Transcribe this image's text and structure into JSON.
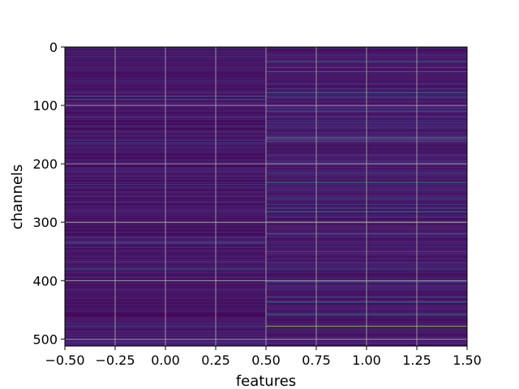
{
  "chart_data": {
    "type": "heatmap",
    "xlabel": "features",
    "ylabel": "channels",
    "xlim": [
      -0.5,
      1.5
    ],
    "ylim": [
      512,
      0
    ],
    "n_rows": 512,
    "x_cells": [
      0,
      1
    ],
    "x_ticks": [
      -0.5,
      -0.25,
      0.0,
      0.25,
      0.5,
      0.75,
      1.0,
      1.25,
      1.5
    ],
    "x_tick_labels": [
      "−0.50",
      "−0.25",
      "0.00",
      "0.25",
      "0.50",
      "0.75",
      "1.00",
      "1.25",
      "1.50"
    ],
    "y_ticks": [
      0,
      100,
      200,
      300,
      400,
      500
    ],
    "y_tick_labels": [
      "0",
      "100",
      "200",
      "300",
      "400",
      "500"
    ],
    "grid": true,
    "colormap": "viridis",
    "colors": {
      "viridis": [
        "#440154",
        "#472c7a",
        "#3b518b",
        "#2c718e",
        "#21908d",
        "#27ad81",
        "#5cc863",
        "#aadc32",
        "#fde725"
      ],
      "grid": "#b0b0b0"
    },
    "columns": [
      {
        "feature": 0,
        "base": 0.06,
        "bright_rows": [
          {
            "row": 84,
            "value": 0.38
          },
          {
            "row": 90,
            "value": 0.3
          },
          {
            "row": 120,
            "value": 0.22
          },
          {
            "row": 160,
            "value": 0.2
          },
          {
            "row": 235,
            "value": 0.2
          },
          {
            "row": 326,
            "value": 0.3
          },
          {
            "row": 334,
            "value": 0.33
          },
          {
            "row": 380,
            "value": 0.4
          },
          {
            "row": 400,
            "value": 0.55
          },
          {
            "row": 478,
            "value": 0.2
          }
        ]
      },
      {
        "feature": 1,
        "base": 0.07,
        "bright_rows": [
          {
            "row": 25,
            "value": 0.5
          },
          {
            "row": 35,
            "value": 0.4
          },
          {
            "row": 42,
            "value": 0.45
          },
          {
            "row": 78,
            "value": 0.45
          },
          {
            "row": 86,
            "value": 0.32
          },
          {
            "row": 110,
            "value": 0.3
          },
          {
            "row": 130,
            "value": 0.22
          },
          {
            "row": 155,
            "value": 0.55
          },
          {
            "row": 158,
            "value": 0.6
          },
          {
            "row": 162,
            "value": 0.42
          },
          {
            "row": 185,
            "value": 0.25
          },
          {
            "row": 215,
            "value": 0.25
          },
          {
            "row": 232,
            "value": 0.55
          },
          {
            "row": 260,
            "value": 0.25
          },
          {
            "row": 276,
            "value": 0.45
          },
          {
            "row": 282,
            "value": 0.5
          },
          {
            "row": 300,
            "value": 0.8
          },
          {
            "row": 320,
            "value": 0.45
          },
          {
            "row": 350,
            "value": 0.3
          },
          {
            "row": 380,
            "value": 0.3
          },
          {
            "row": 401,
            "value": 0.45
          },
          {
            "row": 428,
            "value": 0.3
          },
          {
            "row": 437,
            "value": 0.5
          },
          {
            "row": 458,
            "value": 0.5
          },
          {
            "row": 478,
            "value": 0.85
          },
          {
            "row": 500,
            "value": 0.35
          }
        ]
      }
    ]
  }
}
